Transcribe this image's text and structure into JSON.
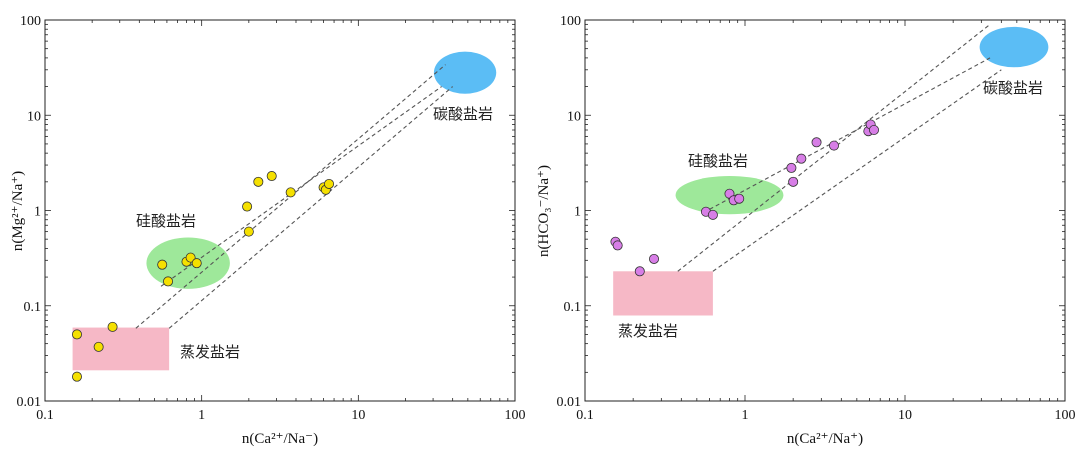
{
  "chart_data": [
    {
      "type": "scatter",
      "xscale": "log",
      "yscale": "log",
      "xlim": [
        0.1,
        100
      ],
      "ylim": [
        0.01,
        100
      ],
      "xticks": [
        "0.1",
        "1",
        "10",
        "100"
      ],
      "yticks": [
        "0.01",
        "0.1",
        "1",
        "10",
        "100"
      ],
      "xlabel": "n(Ca²⁺/Na⁻)",
      "ylabel": "n(Mg²⁺/Na⁺)",
      "point_color": "#f5e000",
      "points": [
        {
          "x": 0.16,
          "y": 0.05
        },
        {
          "x": 0.16,
          "y": 0.018
        },
        {
          "x": 0.22,
          "y": 0.037
        },
        {
          "x": 0.27,
          "y": 0.06
        },
        {
          "x": 0.56,
          "y": 0.27
        },
        {
          "x": 0.61,
          "y": 0.18
        },
        {
          "x": 0.8,
          "y": 0.29
        },
        {
          "x": 0.85,
          "y": 0.32
        },
        {
          "x": 0.93,
          "y": 0.28
        },
        {
          "x": 1.95,
          "y": 1.1
        },
        {
          "x": 2.0,
          "y": 0.6
        },
        {
          "x": 2.3,
          "y": 2.0
        },
        {
          "x": 2.8,
          "y": 2.3
        },
        {
          "x": 3.7,
          "y": 1.55
        },
        {
          "x": 6.0,
          "y": 1.75
        },
        {
          "x": 6.2,
          "y": 1.65
        },
        {
          "x": 6.5,
          "y": 1.9
        }
      ],
      "zones": [
        {
          "name": "碳酸盐岩",
          "shape": "ellipse",
          "color": "#5bbdf5",
          "center": [
            48,
            28
          ],
          "span_x": [
            30,
            75
          ],
          "span_y": [
            17,
            47
          ]
        },
        {
          "name": "硅酸盐岩",
          "shape": "ellipse",
          "color": "#9ee89a",
          "center": [
            0.82,
            0.28
          ],
          "span_x": [
            0.44,
            1.5
          ],
          "span_y": [
            0.15,
            0.52
          ]
        },
        {
          "name": "蒸发盐岩",
          "shape": "rect",
          "color": "#f6b8c6",
          "span_x": [
            0.15,
            0.62
          ],
          "span_y": [
            0.021,
            0.059
          ]
        }
      ],
      "guides": [
        [
          [
            0.38,
            0.058
          ],
          [
            36,
            34
          ]
        ],
        [
          [
            0.62,
            0.058
          ],
          [
            40,
            20
          ]
        ],
        [
          [
            0.55,
            0.16
          ],
          [
            34,
            20
          ]
        ]
      ]
    },
    {
      "type": "scatter",
      "xscale": "log",
      "yscale": "log",
      "xlim": [
        0.1,
        100
      ],
      "ylim": [
        0.01,
        100
      ],
      "xticks": [
        "0.1",
        "1",
        "10",
        "100"
      ],
      "yticks": [
        "0.01",
        "0.1",
        "1",
        "10",
        "100"
      ],
      "xlabel": "n(Ca²⁺/Na⁺)",
      "ylabel": "n(HCO₃⁻/Na⁺)",
      "point_color": "#d77ee6",
      "points": [
        {
          "x": 0.155,
          "y": 0.47
        },
        {
          "x": 0.16,
          "y": 0.43
        },
        {
          "x": 0.22,
          "y": 0.23
        },
        {
          "x": 0.27,
          "y": 0.31
        },
        {
          "x": 0.57,
          "y": 0.97
        },
        {
          "x": 0.63,
          "y": 0.9
        },
        {
          "x": 0.8,
          "y": 1.5
        },
        {
          "x": 0.85,
          "y": 1.28
        },
        {
          "x": 0.92,
          "y": 1.33
        },
        {
          "x": 1.95,
          "y": 2.8
        },
        {
          "x": 2.0,
          "y": 2.0
        },
        {
          "x": 2.25,
          "y": 3.5
        },
        {
          "x": 2.8,
          "y": 5.2
        },
        {
          "x": 3.6,
          "y": 4.8
        },
        {
          "x": 5.9,
          "y": 6.8
        },
        {
          "x": 6.1,
          "y": 8.0
        },
        {
          "x": 6.4,
          "y": 7.0
        }
      ],
      "zones": [
        {
          "name": "碳酸盐岩",
          "shape": "ellipse",
          "color": "#5bbdf5",
          "center": [
            48,
            52
          ],
          "span_x": [
            29,
            78
          ],
          "span_y": [
            32,
            85
          ]
        },
        {
          "name": "硅酸盐岩",
          "shape": "ellipse",
          "color": "#9ee89a",
          "center": [
            0.8,
            1.45
          ],
          "span_x": [
            0.36,
            1.7
          ],
          "span_y": [
            0.95,
            2.4
          ]
        },
        {
          "name": "蒸发盐岩",
          "shape": "rect",
          "color": "#f6b8c6",
          "span_x": [
            0.15,
            0.63
          ],
          "span_y": [
            0.079,
            0.23
          ]
        }
      ],
      "guides": [
        [
          [
            0.38,
            0.23
          ],
          [
            34,
            90
          ]
        ],
        [
          [
            0.63,
            0.23
          ],
          [
            40,
            30
          ]
        ],
        [
          [
            0.55,
            0.95
          ],
          [
            34,
            40
          ]
        ]
      ]
    }
  ]
}
